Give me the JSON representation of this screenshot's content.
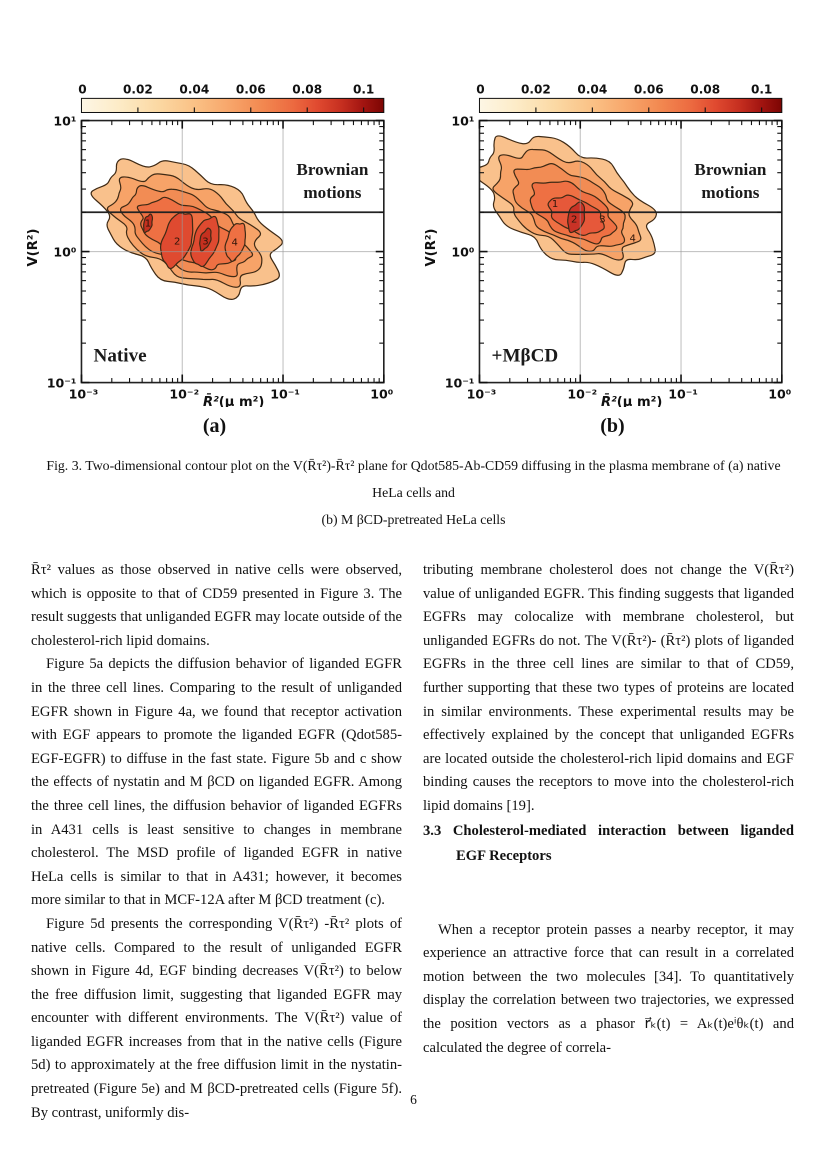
{
  "figure": {
    "caption_line1": "Fig. 3.  Two-dimensional contour plot on the V(R̄τ²)-R̄τ² plane for Qdot585-Ab-CD59 diffusing in the plasma membrane of (a) native HeLa cells and",
    "caption_line2": "(b) M βCD-pretreated HeLa cells",
    "plots": [
      {
        "sublabel": "(a)",
        "condition_label": "Native",
        "region_label_line1": "Brownian",
        "region_label_line2": "motions",
        "ylabel": "V(R²)",
        "xlabel_math": "R̄²",
        "xlabel_unit": "(μ m²)",
        "x_ticks": [
          "10⁻³",
          "10⁻²",
          "10⁻¹",
          "10⁰"
        ],
        "y_ticks": [
          "10¹",
          "10⁰",
          "10⁻¹"
        ],
        "colorbar_ticks": [
          "0",
          "0.02",
          "0.04",
          "0.06",
          "0.08",
          "0.1"
        ],
        "peak_labels": [
          "1",
          "2",
          "3",
          "4"
        ]
      },
      {
        "sublabel": "(b)",
        "condition_label": "+MβCD",
        "region_label_line1": "Brownian",
        "region_label_line2": "motions",
        "ylabel": "V(R²)",
        "xlabel_math": "R̄²",
        "xlabel_unit": "(μ m²)",
        "x_ticks": [
          "10⁻³",
          "10⁻²",
          "10⁻¹",
          "10⁰"
        ],
        "y_ticks": [
          "10¹",
          "10⁰",
          "10⁻¹"
        ],
        "colorbar_ticks": [
          "0",
          "0.02",
          "0.04",
          "0.06",
          "0.08",
          "0.1"
        ],
        "peak_labels": [
          "1",
          "2",
          "3",
          "4"
        ]
      }
    ]
  },
  "chart_data": [
    {
      "type": "contour",
      "panel": "a",
      "title": "Native",
      "xlabel": "R̄² (μm²)",
      "ylabel": "V(R²)",
      "x_scale": "log",
      "y_scale": "log",
      "xlim": [
        0.001,
        1
      ],
      "ylim": [
        0.1,
        10
      ],
      "colorbar_range": [
        0,
        0.1
      ],
      "colorbar_ticks": [
        0,
        0.02,
        0.04,
        0.06,
        0.08,
        0.1
      ],
      "brownian_motion_threshold_y": 2,
      "gridlines_x": [
        0.01,
        0.1
      ],
      "gridlines_y": [
        1
      ],
      "annotations": [
        "Brownian motions",
        "Native"
      ],
      "peaks": [
        {
          "label": "1",
          "x": 0.0046,
          "y": 1.65
        },
        {
          "label": "2",
          "x": 0.009,
          "y": 1.2
        },
        {
          "label": "3",
          "x": 0.017,
          "y": 1.2
        },
        {
          "label": "4",
          "x": 0.031,
          "y": 1.2
        }
      ],
      "distribution_center": {
        "x": 0.012,
        "y": 1.4
      },
      "legend_position": "none",
      "grid": true
    },
    {
      "type": "contour",
      "panel": "b",
      "title": "+MβCD",
      "xlabel": "R̄² (μm²)",
      "ylabel": "V(R²)",
      "x_scale": "log",
      "y_scale": "log",
      "xlim": [
        0.001,
        1
      ],
      "ylim": [
        0.1,
        10
      ],
      "colorbar_range": [
        0,
        0.1
      ],
      "colorbar_ticks": [
        0,
        0.02,
        0.04,
        0.06,
        0.08,
        0.1
      ],
      "brownian_motion_threshold_y": 2,
      "gridlines_x": [
        0.01,
        0.1
      ],
      "gridlines_y": [
        1
      ],
      "annotations": [
        "Brownian motions",
        "+MβCD"
      ],
      "peaks": [
        {
          "label": "1",
          "x": 0.0056,
          "y": 2.3
        },
        {
          "label": "2",
          "x": 0.0087,
          "y": 1.75
        },
        {
          "label": "3",
          "x": 0.017,
          "y": 1.75
        },
        {
          "label": "4",
          "x": 0.033,
          "y": 1.25
        }
      ],
      "distribution_center": {
        "x": 0.009,
        "y": 1.9
      },
      "legend_position": "none",
      "grid": true
    }
  ],
  "body": {
    "left_column": {
      "para1": "R̄τ² values as those observed in native cells were observed, which is opposite to that of CD59 presented in Figure 3. The result suggests that unliganded EGFR may locate outside of the cholesterol-rich lipid domains.",
      "para2": "Figure 5a depicts the diffusion behavior of liganded EGFR in the three cell lines. Comparing to the result of unliganded EGFR shown in Figure 4a, we found that receptor activation with EGF appears to promote the liganded EGFR (Qdot585-EGF-EGFR) to diffuse in the fast state. Figure 5b and c show the effects of nystatin and M βCD on liganded EGFR. Among the three cell lines, the diffusion behavior of liganded EGFRs in A431 cells is least sensitive to changes in membrane cholesterol. The MSD profile of liganded EGFR in native HeLa cells is similar to that in A431; however, it becomes more similar to that in MCF-12A after M βCD treatment (c).",
      "para3": "Figure 5d presents the corresponding V(R̄τ²) -R̄τ² plots of native cells. Compared to the result of unliganded EGFR shown in Figure 4d, EGF binding decreases V(R̄τ²) to below the free diffusion limit, suggesting that liganded EGFR may encounter with different environments. The V(R̄τ²) value of liganded EGFR increases from that in the native cells (Figure 5d) to approximately at the free diffusion limit in the nystatin-pretreated (Figure 5e) and M βCD-pretreated cells (Figure 5f). By contrast, uniformly dis-"
    },
    "right_column": {
      "para1": "tributing membrane cholesterol does not change the V(R̄τ²) value of unliganded EGFR. This finding suggests that liganded EGFRs may colocalize with membrane cholesterol, but unliganded EGFRs do not. The V(R̄τ²)- (R̄τ²) plots of liganded EGFRs in the three cell lines are similar to that of CD59, further supporting that these two types of proteins are located in similar environments. These experimental results may be effectively explained by the concept that unliganded EGFRs are located outside the cholesterol-rich lipid domains and EGF binding causes the receptors to move into the cholesterol-rich lipid domains [19].",
      "heading": "3.3 Cholesterol-mediated interaction between liganded EGF Receptors",
      "para2": "When a receptor protein passes a nearby receptor, it may experience an attractive force that can result in a correlated motion between the two molecules [34]. To quantitatively display the correlation between two trajectories, we expressed the position vectors as a phasor r⃗ₖ(t) = Aₖ(t)eⁱθₖ(t) and calculated the degree of correla-"
    }
  },
  "page_number": "6"
}
